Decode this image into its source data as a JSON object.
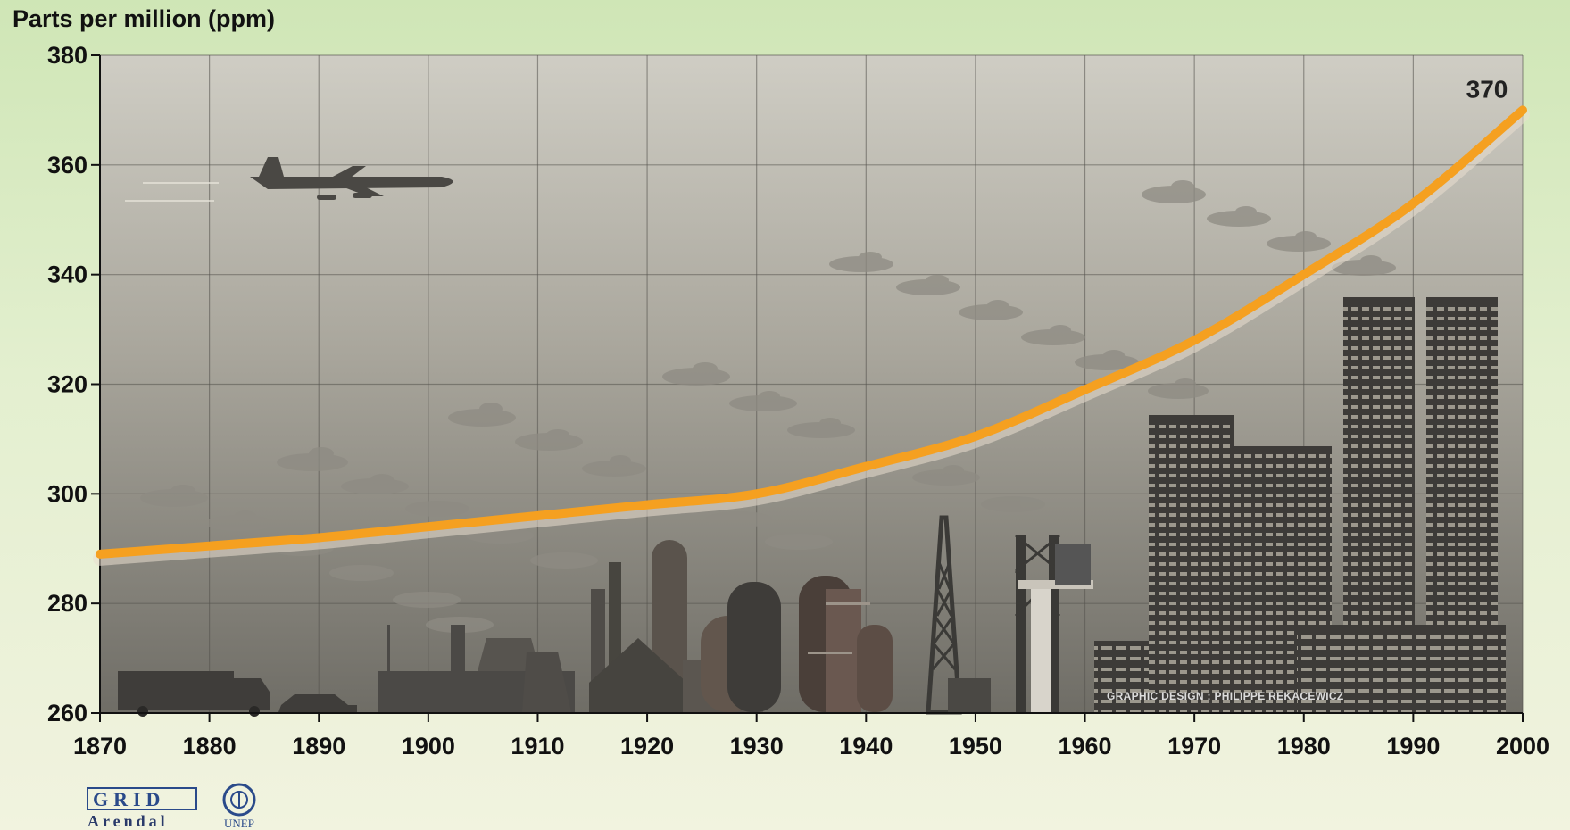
{
  "chart_data": {
    "type": "line",
    "ylabel": "Parts per million (ppm)",
    "xlabel": "",
    "xlim": [
      1870,
      2000
    ],
    "ylim": [
      260,
      380
    ],
    "x_ticks": [
      1870,
      1880,
      1890,
      1900,
      1910,
      1920,
      1930,
      1940,
      1950,
      1960,
      1970,
      1980,
      1990,
      2000
    ],
    "y_ticks": [
      260,
      280,
      300,
      320,
      340,
      360,
      380
    ],
    "grid": true,
    "series": [
      {
        "x": [
          1870,
          1880,
          1890,
          1900,
          1910,
          1920,
          1930,
          1940,
          1950,
          1960,
          1970,
          1980,
          1990,
          2000
        ],
        "y": [
          289,
          290.5,
          292,
          294,
          296,
          298,
          300,
          305,
          310.5,
          319,
          328,
          340,
          353,
          370
        ]
      }
    ],
    "annotations": [
      {
        "text": "370"
      }
    ],
    "credit": "GRAPHIC DESIGN : PHILIPPE REKACEWICZ",
    "series_color": "#f5a020"
  },
  "logos": {
    "grid_text": "GRID",
    "arendal_text": "Arendal",
    "unep_text": "UNEP"
  }
}
